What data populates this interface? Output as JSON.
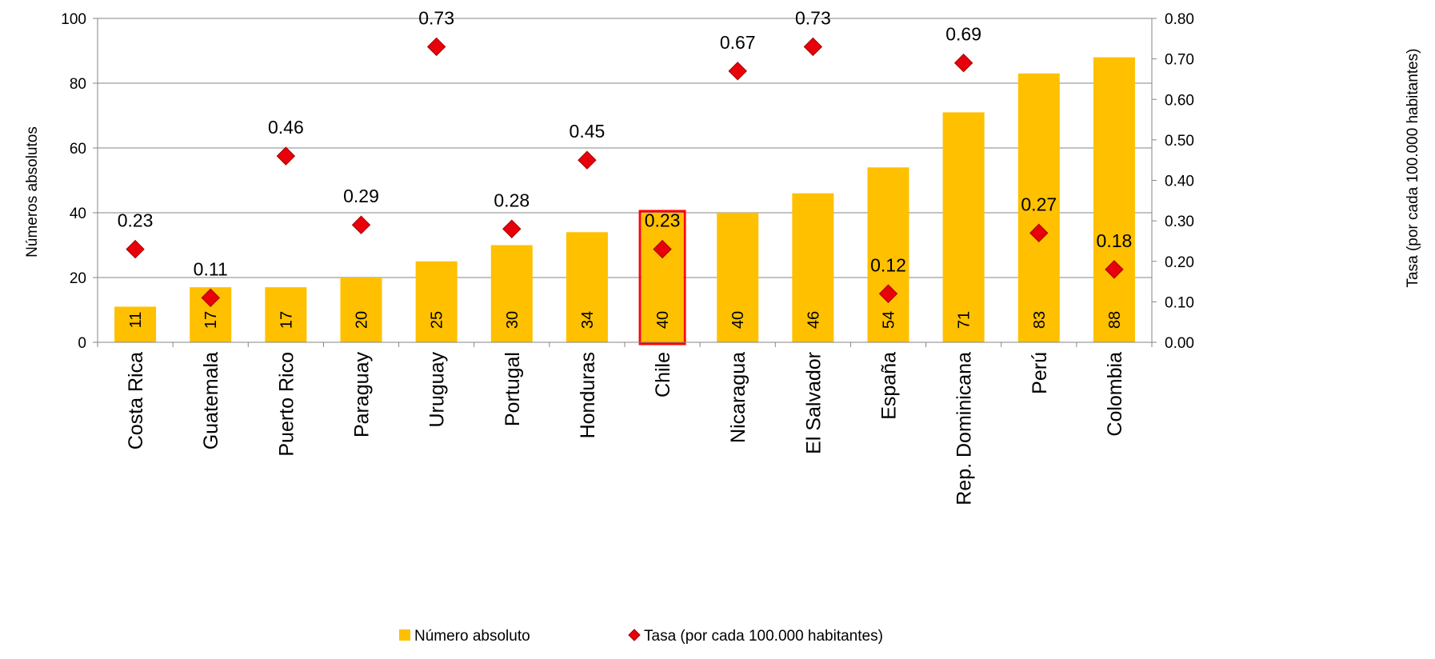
{
  "chart_data": {
    "type": "bar",
    "categories": [
      "Costa Rica",
      "Guatemala",
      "Puerto Rico",
      "Paraguay",
      "Uruguay",
      "Portugal",
      "Honduras",
      "Chile",
      "Nicaragua",
      "El Salvador",
      "España",
      "Rep. Dominicana",
      "Perú",
      "Colombia"
    ],
    "highlight_category": "Chile",
    "highlight_color": "#ff0000",
    "series": [
      {
        "name": "Número absoluto",
        "kind": "bar",
        "axis": "left",
        "color": "#ffc000",
        "values": [
          11,
          17,
          17,
          20,
          25,
          30,
          34,
          40,
          40,
          46,
          54,
          71,
          83,
          88
        ],
        "labels": [
          "11",
          "17",
          "17",
          "20",
          "25",
          "30",
          "34",
          "40",
          "40",
          "46",
          "54",
          "71",
          "83",
          "88"
        ]
      },
      {
        "name": "Tasa (por cada 100.000 habitantes)",
        "kind": "diamond",
        "axis": "right",
        "color": "#e8000b",
        "values": [
          0.23,
          0.11,
          0.46,
          0.29,
          0.73,
          0.28,
          0.45,
          0.23,
          0.67,
          0.73,
          0.12,
          0.69,
          0.27,
          0.18
        ],
        "labels": [
          "0.23",
          "0.11",
          "0.46",
          "0.29",
          "0.73",
          "0.28",
          "0.45",
          "0.23",
          "0.67",
          "0.73",
          "0.12",
          "0.69",
          "0.27",
          "0.18"
        ]
      }
    ],
    "ylabel": "Números absolutos",
    "y2label": "Tasa (por cada 100.000 habitantes)",
    "ylim": [
      0,
      100
    ],
    "y2lim": [
      0,
      0.8
    ],
    "yticks": [
      "0",
      "20",
      "40",
      "60",
      "80",
      "100"
    ],
    "y2ticks": [
      "0.00",
      "0.10",
      "0.20",
      "0.30",
      "0.40",
      "0.50",
      "0.60",
      "0.70",
      "0.80"
    ],
    "grid": true,
    "legend": "bottom-center"
  }
}
